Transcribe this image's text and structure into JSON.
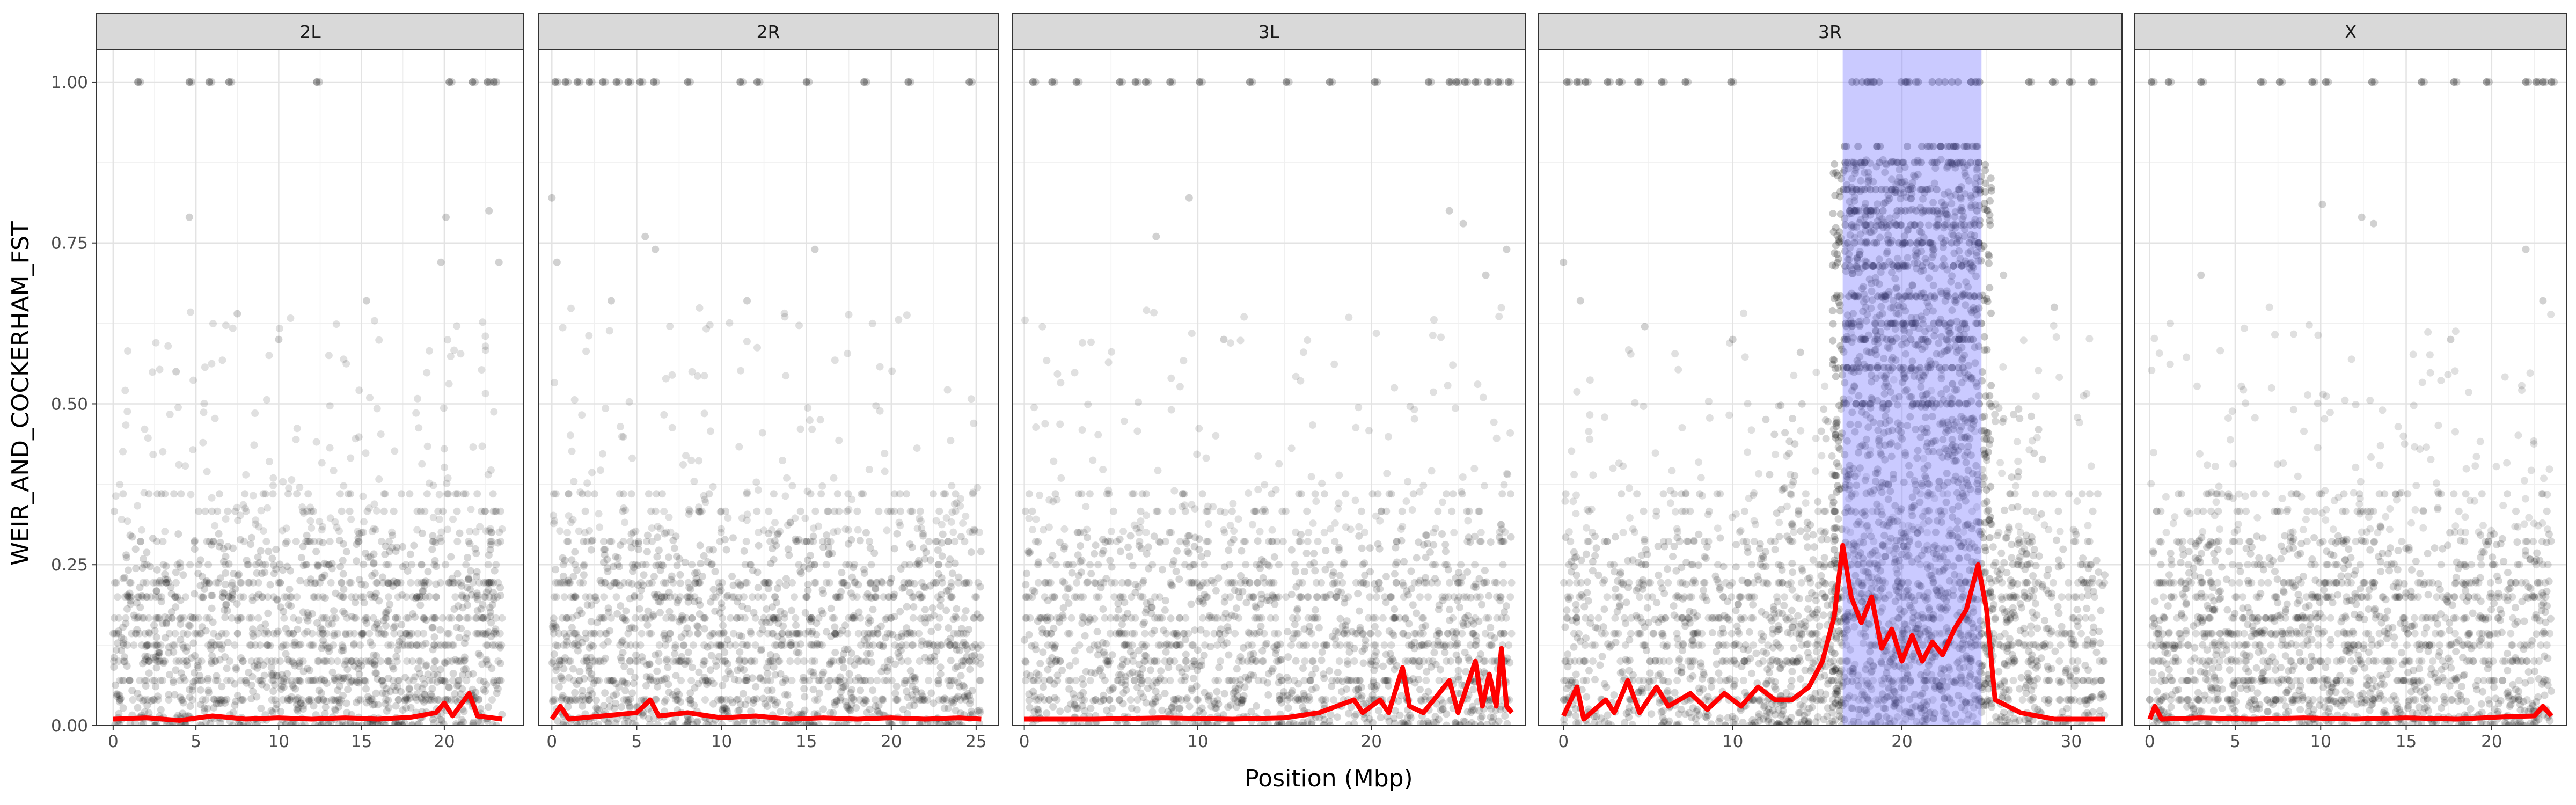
{
  "chart_data": {
    "type": "scatter",
    "xlabel": "Position (Mbp)",
    "ylabel": "WEIR_AND_COCKERHAM_FST",
    "ylim": [
      0,
      1.05
    ],
    "y_ticks": [
      "0.00",
      "0.25",
      "0.50",
      "0.75",
      "1.00"
    ],
    "y_tick_values": [
      0,
      0.25,
      0.5,
      0.75,
      1.0
    ],
    "grid": true,
    "point_color": "#000000",
    "line_color": "#ff0000",
    "highlight_color": "#8080ff",
    "panels": [
      {
        "name": "2L",
        "xlim": [
          -1.0,
          24.8
        ],
        "x_ticks": [
          0,
          5,
          10,
          15,
          20
        ],
        "tick_labels": [
          "0",
          "5",
          "10",
          "15",
          "20"
        ],
        "x_max": 23.5,
        "smooth_line": [
          [
            0,
            0.01
          ],
          [
            2,
            0.012
          ],
          [
            4,
            0.008
          ],
          [
            6,
            0.015
          ],
          [
            8,
            0.01
          ],
          [
            10,
            0.012
          ],
          [
            12,
            0.01
          ],
          [
            14,
            0.012
          ],
          [
            16,
            0.01
          ],
          [
            18,
            0.013
          ],
          [
            19.5,
            0.02
          ],
          [
            20,
            0.035
          ],
          [
            20.5,
            0.015
          ],
          [
            21.5,
            0.05
          ],
          [
            22,
            0.015
          ],
          [
            23.5,
            0.01
          ]
        ],
        "dense_band": [
          0.3,
          0.22
        ],
        "top_points": [
          1.5,
          4.6,
          5.8,
          7.0,
          12.3,
          20.3,
          21.7,
          22.6,
          23.0
        ],
        "outliers": [
          [
            4.6,
            0.79
          ],
          [
            7.5,
            0.64
          ],
          [
            10,
            0.6
          ],
          [
            19.8,
            0.72
          ],
          [
            20.1,
            0.79
          ],
          [
            22.7,
            0.8
          ],
          [
            23.3,
            0.72
          ],
          [
            3.8,
            0.55
          ],
          [
            15.3,
            0.66
          ]
        ]
      },
      {
        "name": "2R",
        "xlim": [
          -0.8,
          26.3
        ],
        "x_ticks": [
          0,
          5,
          10,
          15,
          20,
          25
        ],
        "tick_labels": [
          "0",
          "5",
          "10",
          "15",
          "20",
          "25"
        ],
        "x_max": 25.3,
        "smooth_line": [
          [
            0,
            0.01
          ],
          [
            0.5,
            0.03
          ],
          [
            1,
            0.01
          ],
          [
            3,
            0.015
          ],
          [
            5,
            0.02
          ],
          [
            5.8,
            0.04
          ],
          [
            6.3,
            0.015
          ],
          [
            8,
            0.02
          ],
          [
            10,
            0.012
          ],
          [
            12,
            0.015
          ],
          [
            14,
            0.01
          ],
          [
            16,
            0.012
          ],
          [
            18,
            0.01
          ],
          [
            20,
            0.012
          ],
          [
            22,
            0.01
          ],
          [
            24,
            0.012
          ],
          [
            25.3,
            0.01
          ]
        ],
        "dense_band": [
          0.3,
          0.2
        ],
        "top_points": [
          0.2,
          0.8,
          1.5,
          2.2,
          3.0,
          3.8,
          4.5,
          5.2,
          6.0,
          8.0,
          11.1,
          12.1,
          15.0,
          18.4,
          21.0,
          24.6
        ],
        "outliers": [
          [
            0,
            0.82
          ],
          [
            5.5,
            0.76
          ],
          [
            6.1,
            0.74
          ],
          [
            3.5,
            0.66
          ],
          [
            15.5,
            0.74
          ],
          [
            11.5,
            0.66
          ],
          [
            0.3,
            0.72
          ]
        ]
      },
      {
        "name": "3L",
        "xlim": [
          -0.7,
          28.9
        ],
        "x_ticks": [
          0,
          10,
          20
        ],
        "tick_labels": [
          "0",
          "10",
          "20"
        ],
        "x_max": 28.1,
        "smooth_line": [
          [
            0,
            0.01
          ],
          [
            4,
            0.01
          ],
          [
            8,
            0.012
          ],
          [
            12,
            0.01
          ],
          [
            15,
            0.012
          ],
          [
            17,
            0.02
          ],
          [
            18,
            0.03
          ],
          [
            19,
            0.04
          ],
          [
            19.5,
            0.02
          ],
          [
            20.5,
            0.04
          ],
          [
            21,
            0.02
          ],
          [
            21.8,
            0.09
          ],
          [
            22.2,
            0.03
          ],
          [
            23,
            0.02
          ],
          [
            24.5,
            0.07
          ],
          [
            25,
            0.02
          ],
          [
            26,
            0.1
          ],
          [
            26.4,
            0.03
          ],
          [
            26.8,
            0.08
          ],
          [
            27.2,
            0.03
          ],
          [
            27.5,
            0.12
          ],
          [
            27.8,
            0.03
          ],
          [
            28.1,
            0.02
          ]
        ],
        "dense_band": [
          0.3,
          0.22
        ],
        "top_points": [
          0.5,
          1.6,
          3.0,
          5.5,
          6.4,
          7.0,
          8.4,
          10.1,
          13.0,
          15.1,
          17.6,
          20.2,
          23.3,
          24.5,
          24.9,
          25.4,
          26.0,
          26.7,
          27.3,
          27.9
        ],
        "outliers": [
          [
            7.6,
            0.76
          ],
          [
            9.5,
            0.82
          ],
          [
            24.5,
            0.8
          ],
          [
            25.3,
            0.78
          ],
          [
            26.6,
            0.7
          ],
          [
            27.8,
            0.74
          ],
          [
            11.5,
            0.6
          ]
        ]
      },
      {
        "name": "3R",
        "xlim": [
          -1.5,
          33.0
        ],
        "x_ticks": [
          0,
          10,
          20,
          30
        ],
        "tick_labels": [
          "0",
          "10",
          "20",
          "30"
        ],
        "x_max": 32.0,
        "highlight": [
          16.5,
          24.7
        ],
        "smooth_line": [
          [
            0,
            0.015
          ],
          [
            0.8,
            0.06
          ],
          [
            1.2,
            0.01
          ],
          [
            2.5,
            0.04
          ],
          [
            3,
            0.02
          ],
          [
            3.8,
            0.07
          ],
          [
            4.5,
            0.02
          ],
          [
            5.5,
            0.06
          ],
          [
            6.2,
            0.03
          ],
          [
            7.5,
            0.05
          ],
          [
            8.5,
            0.025
          ],
          [
            9.5,
            0.05
          ],
          [
            10.5,
            0.03
          ],
          [
            11.5,
            0.06
          ],
          [
            12.5,
            0.04
          ],
          [
            13.5,
            0.04
          ],
          [
            14.5,
            0.06
          ],
          [
            15.3,
            0.1
          ],
          [
            16.0,
            0.17
          ],
          [
            16.5,
            0.28
          ],
          [
            17.0,
            0.2
          ],
          [
            17.6,
            0.16
          ],
          [
            18.2,
            0.2
          ],
          [
            18.8,
            0.12
          ],
          [
            19.4,
            0.15
          ],
          [
            20,
            0.1
          ],
          [
            20.6,
            0.14
          ],
          [
            21.2,
            0.1
          ],
          [
            21.8,
            0.13
          ],
          [
            22.4,
            0.11
          ],
          [
            23.1,
            0.15
          ],
          [
            23.8,
            0.18
          ],
          [
            24.5,
            0.25
          ],
          [
            25,
            0.18
          ],
          [
            25.5,
            0.04
          ],
          [
            27,
            0.02
          ],
          [
            29,
            0.01
          ],
          [
            32,
            0.01
          ]
        ],
        "dense_band": [
          0.3,
          0.22
        ],
        "top_points": [
          0.2,
          0.8,
          1.3,
          2.6,
          3.3,
          4.4,
          5.8,
          7.2,
          9.9,
          27.5,
          28.9,
          29.9,
          31.2
        ],
        "outliers": [
          [
            0,
            0.72
          ],
          [
            1.0,
            0.66
          ],
          [
            4.8,
            0.62
          ],
          [
            10,
            0.6
          ],
          [
            14,
            0.58
          ],
          [
            26,
            0.7
          ],
          [
            29,
            0.65
          ]
        ]
      },
      {
        "name": "X",
        "xlim": [
          -0.9,
          24.4
        ],
        "x_ticks": [
          0,
          5,
          10,
          15,
          20
        ],
        "tick_labels": [
          "0",
          "5",
          "10",
          "15",
          "20"
        ],
        "x_max": 23.5,
        "smooth_line": [
          [
            0,
            0.01
          ],
          [
            0.3,
            0.03
          ],
          [
            0.7,
            0.01
          ],
          [
            3,
            0.012
          ],
          [
            6,
            0.01
          ],
          [
            9,
            0.012
          ],
          [
            12,
            0.01
          ],
          [
            15,
            0.012
          ],
          [
            18,
            0.01
          ],
          [
            21,
            0.014
          ],
          [
            22.5,
            0.015
          ],
          [
            23,
            0.03
          ],
          [
            23.5,
            0.015
          ]
        ],
        "dense_band": [
          0.3,
          0.22
        ],
        "top_points": [
          0.1,
          1.1,
          3.0,
          6.5,
          7.6,
          9.5,
          10.3,
          13.0,
          15.9,
          17.8,
          19.7,
          22.0,
          22.6,
          23.0,
          23.5
        ],
        "outliers": [
          [
            10.1,
            0.81
          ],
          [
            12.4,
            0.79
          ],
          [
            13.1,
            0.78
          ],
          [
            22.0,
            0.74
          ],
          [
            23.0,
            0.66
          ],
          [
            3.0,
            0.7
          ],
          [
            17.6,
            0.6
          ]
        ]
      }
    ]
  }
}
